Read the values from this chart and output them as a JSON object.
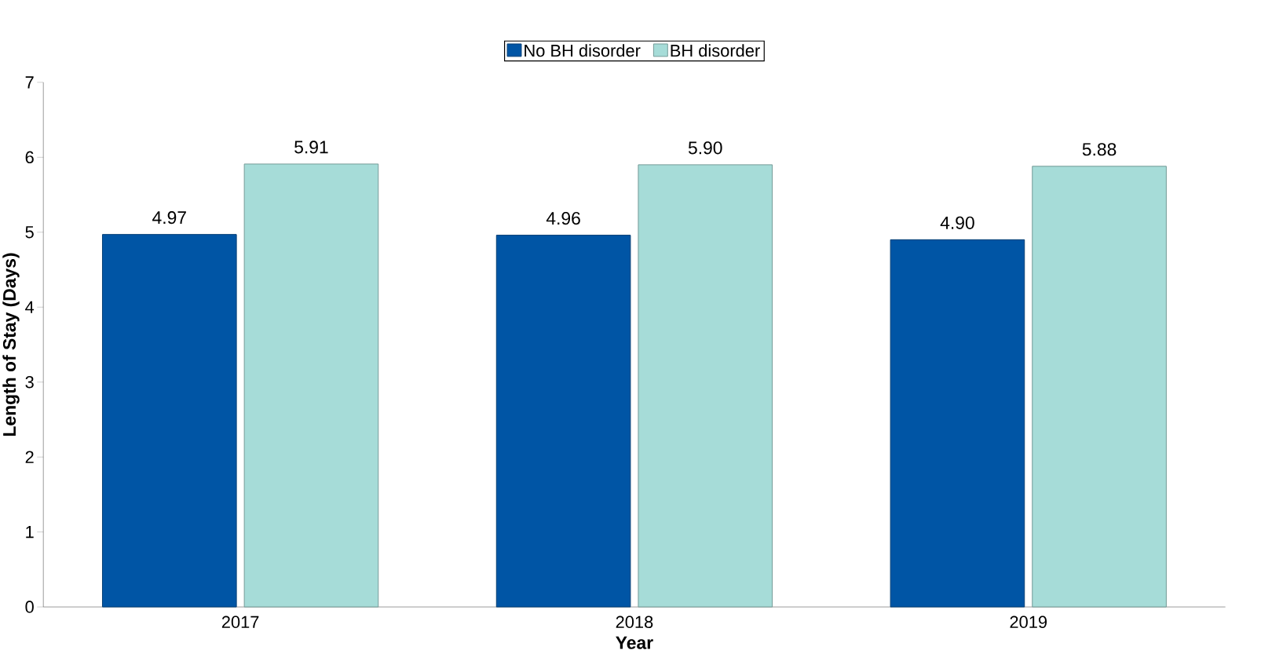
{
  "chart_data": {
    "type": "bar",
    "xlabel": "Year",
    "ylabel": "Length of Stay (Days)",
    "categories": [
      "2017",
      "2018",
      "2019"
    ],
    "series": [
      {
        "name": "No BH disorder",
        "color": "#0055a5",
        "values": [
          4.97,
          4.96,
          4.9
        ],
        "value_labels": [
          "4.97",
          "4.96",
          "4.90"
        ]
      },
      {
        "name": "BH disorder",
        "color": "#a6dcd8",
        "values": [
          5.91,
          5.9,
          5.88
        ],
        "value_labels": [
          "5.91",
          "5.90",
          "5.88"
        ]
      }
    ],
    "ylim": [
      0,
      7
    ],
    "yticks": [
      0,
      1,
      2,
      3,
      4,
      5,
      6,
      7
    ],
    "legend": "top"
  }
}
